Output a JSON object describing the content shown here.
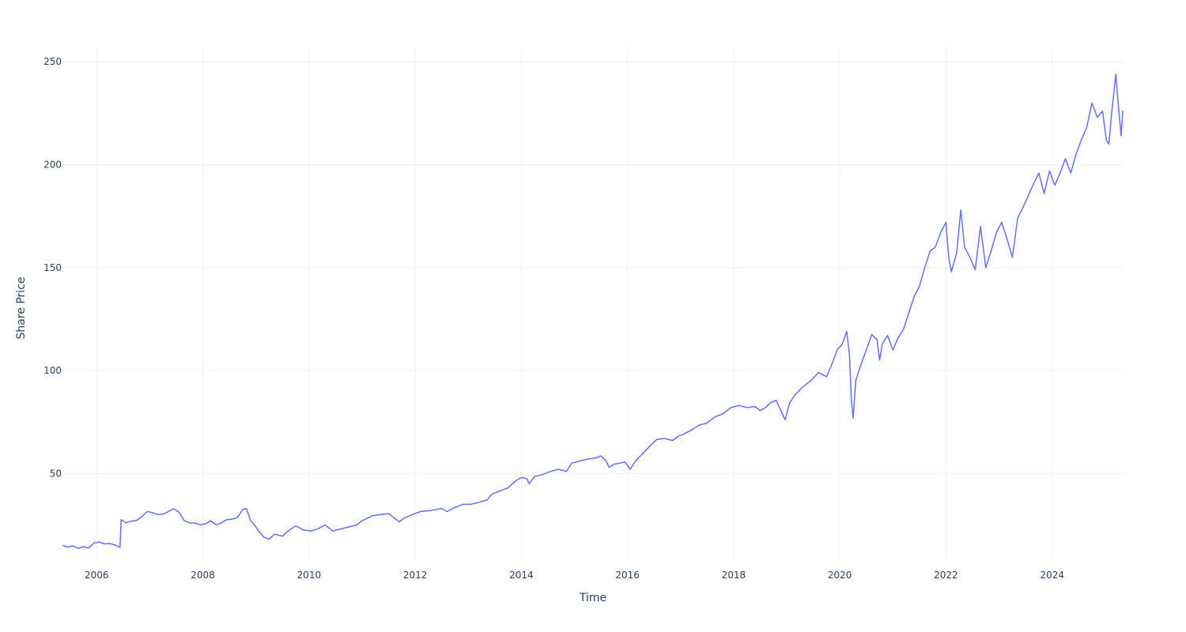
{
  "chart_data": {
    "type": "line",
    "title": "",
    "xlabel": "Time",
    "ylabel": "Share Price",
    "x_tick_labels": [
      "2006",
      "2008",
      "2010",
      "2012",
      "2014",
      "2016",
      "2018",
      "2020",
      "2022",
      "2024"
    ],
    "y_tick_labels": [
      "50",
      "100",
      "150",
      "200",
      "250"
    ],
    "x_ticks": [
      2006,
      2008,
      2010,
      2012,
      2014,
      2016,
      2018,
      2020,
      2022,
      2024
    ],
    "y_ticks": [
      50,
      100,
      150,
      200,
      250
    ],
    "xlim": [
      2005.37,
      2025.33
    ],
    "ylim": [
      7.5,
      257
    ],
    "grid": true,
    "legend": "none",
    "series": [
      {
        "color": "#636efa",
        "points": [
          [
            2005.37,
            15.0
          ],
          [
            2005.45,
            14.2
          ],
          [
            2005.55,
            14.8
          ],
          [
            2005.65,
            13.6
          ],
          [
            2005.75,
            14.4
          ],
          [
            2005.85,
            13.8
          ],
          [
            2005.95,
            16.2
          ],
          [
            2006.05,
            16.6
          ],
          [
            2006.15,
            15.8
          ],
          [
            2006.25,
            15.9
          ],
          [
            2006.35,
            15.2
          ],
          [
            2006.44,
            14.0
          ],
          [
            2006.46,
            27.5
          ],
          [
            2006.55,
            26.0
          ],
          [
            2006.65,
            26.8
          ],
          [
            2006.75,
            27.2
          ],
          [
            2006.85,
            29.0
          ],
          [
            2006.95,
            31.5
          ],
          [
            2007.05,
            31.0
          ],
          [
            2007.15,
            30.0
          ],
          [
            2007.25,
            30.2
          ],
          [
            2007.35,
            31.5
          ],
          [
            2007.45,
            32.8
          ],
          [
            2007.55,
            31.2
          ],
          [
            2007.65,
            27.0
          ],
          [
            2007.75,
            26.0
          ],
          [
            2007.85,
            25.8
          ],
          [
            2007.95,
            25.0
          ],
          [
            2008.05,
            25.5
          ],
          [
            2008.15,
            27.0
          ],
          [
            2008.25,
            25.0
          ],
          [
            2008.35,
            26.0
          ],
          [
            2008.45,
            27.5
          ],
          [
            2008.55,
            27.8
          ],
          [
            2008.65,
            28.5
          ],
          [
            2008.75,
            32.5
          ],
          [
            2008.82,
            33.0
          ],
          [
            2008.9,
            27.0
          ],
          [
            2009.0,
            24.0
          ],
          [
            2009.05,
            22.0
          ],
          [
            2009.15,
            19.0
          ],
          [
            2009.25,
            18.0
          ],
          [
            2009.35,
            20.5
          ],
          [
            2009.5,
            19.5
          ],
          [
            2009.6,
            22.0
          ],
          [
            2009.75,
            24.5
          ],
          [
            2009.9,
            22.5
          ],
          [
            2010.05,
            22.0
          ],
          [
            2010.2,
            23.5
          ],
          [
            2010.3,
            25.0
          ],
          [
            2010.45,
            22.0
          ],
          [
            2010.6,
            23.0
          ],
          [
            2010.75,
            24.0
          ],
          [
            2010.9,
            25.0
          ],
          [
            2011.0,
            27.0
          ],
          [
            2011.2,
            29.5
          ],
          [
            2011.35,
            30.0
          ],
          [
            2011.5,
            30.5
          ],
          [
            2011.6,
            28.5
          ],
          [
            2011.7,
            26.5
          ],
          [
            2011.8,
            28.5
          ],
          [
            2011.95,
            30.0
          ],
          [
            2012.1,
            31.5
          ],
          [
            2012.3,
            32.0
          ],
          [
            2012.5,
            33.0
          ],
          [
            2012.6,
            31.5
          ],
          [
            2012.75,
            33.5
          ],
          [
            2012.9,
            35.0
          ],
          [
            2013.05,
            35.0
          ],
          [
            2013.2,
            36.0
          ],
          [
            2013.35,
            37.0
          ],
          [
            2013.45,
            40.0
          ],
          [
            2013.6,
            41.5
          ],
          [
            2013.75,
            43.0
          ],
          [
            2013.9,
            46.5
          ],
          [
            2014.0,
            48.0
          ],
          [
            2014.1,
            47.5
          ],
          [
            2014.15,
            45.0
          ],
          [
            2014.25,
            48.5
          ],
          [
            2014.4,
            49.5
          ],
          [
            2014.55,
            51.0
          ],
          [
            2014.7,
            52.0
          ],
          [
            2014.85,
            51.0
          ],
          [
            2014.95,
            55.0
          ],
          [
            2015.1,
            56.0
          ],
          [
            2015.25,
            57.0
          ],
          [
            2015.4,
            57.5
          ],
          [
            2015.5,
            58.5
          ],
          [
            2015.6,
            56.0
          ],
          [
            2015.65,
            53.0
          ],
          [
            2015.75,
            54.5
          ],
          [
            2015.85,
            55.0
          ],
          [
            2015.95,
            55.5
          ],
          [
            2016.05,
            52.0
          ],
          [
            2016.15,
            56.0
          ],
          [
            2016.3,
            60.0
          ],
          [
            2016.45,
            64.0
          ],
          [
            2016.55,
            66.5
          ],
          [
            2016.7,
            67.0
          ],
          [
            2016.85,
            66.0
          ],
          [
            2016.95,
            68.0
          ],
          [
            2017.05,
            69.0
          ],
          [
            2017.2,
            71.0
          ],
          [
            2017.35,
            73.5
          ],
          [
            2017.5,
            74.5
          ],
          [
            2017.65,
            77.5
          ],
          [
            2017.8,
            79.0
          ],
          [
            2017.95,
            82.0
          ],
          [
            2018.1,
            83.0
          ],
          [
            2018.25,
            82.0
          ],
          [
            2018.4,
            82.5
          ],
          [
            2018.5,
            80.5
          ],
          [
            2018.6,
            82.0
          ],
          [
            2018.7,
            84.5
          ],
          [
            2018.8,
            85.5
          ],
          [
            2018.9,
            80.0
          ],
          [
            2018.97,
            76.0
          ],
          [
            2019.05,
            84.0
          ],
          [
            2019.15,
            88.0
          ],
          [
            2019.3,
            92.0
          ],
          [
            2019.45,
            95.0
          ],
          [
            2019.6,
            99.0
          ],
          [
            2019.75,
            97.0
          ],
          [
            2019.85,
            103.0
          ],
          [
            2019.95,
            110.0
          ],
          [
            2020.05,
            113.0
          ],
          [
            2020.13,
            119.0
          ],
          [
            2020.18,
            108.0
          ],
          [
            2020.22,
            85.0
          ],
          [
            2020.25,
            77.0
          ],
          [
            2020.3,
            95.0
          ],
          [
            2020.4,
            103.0
          ],
          [
            2020.5,
            110.0
          ],
          [
            2020.6,
            117.5
          ],
          [
            2020.7,
            115.0
          ],
          [
            2020.75,
            105.0
          ],
          [
            2020.8,
            113.0
          ],
          [
            2020.9,
            117.0
          ],
          [
            2021.0,
            110.0
          ],
          [
            2021.1,
            116.0
          ],
          [
            2021.2,
            120.0
          ],
          [
            2021.3,
            128.0
          ],
          [
            2021.4,
            136.0
          ],
          [
            2021.5,
            141.0
          ],
          [
            2021.6,
            150.0
          ],
          [
            2021.7,
            158.0
          ],
          [
            2021.8,
            160.0
          ],
          [
            2021.9,
            167.0
          ],
          [
            2022.0,
            172.0
          ],
          [
            2022.05,
            155.0
          ],
          [
            2022.1,
            148.0
          ],
          [
            2022.2,
            157.0
          ],
          [
            2022.28,
            178.0
          ],
          [
            2022.35,
            160.0
          ],
          [
            2022.45,
            155.0
          ],
          [
            2022.55,
            149.0
          ],
          [
            2022.65,
            170.0
          ],
          [
            2022.75,
            150.0
          ],
          [
            2022.85,
            158.0
          ],
          [
            2022.95,
            167.0
          ],
          [
            2023.05,
            172.0
          ],
          [
            2023.15,
            164.0
          ],
          [
            2023.25,
            155.0
          ],
          [
            2023.35,
            174.0
          ],
          [
            2023.5,
            182.0
          ],
          [
            2023.6,
            188.0
          ],
          [
            2023.75,
            196.0
          ],
          [
            2023.85,
            186.0
          ],
          [
            2023.95,
            197.0
          ],
          [
            2024.05,
            190.0
          ],
          [
            2024.15,
            196.0
          ],
          [
            2024.25,
            203.0
          ],
          [
            2024.35,
            196.0
          ],
          [
            2024.45,
            205.0
          ],
          [
            2024.55,
            212.0
          ],
          [
            2024.65,
            218.0
          ],
          [
            2024.75,
            230.0
          ],
          [
            2024.85,
            223.0
          ],
          [
            2024.95,
            226.0
          ],
          [
            2025.02,
            212.0
          ],
          [
            2025.07,
            210.0
          ],
          [
            2025.12,
            225.0
          ],
          [
            2025.2,
            244.0
          ],
          [
            2025.25,
            228.0
          ],
          [
            2025.3,
            214.0
          ],
          [
            2025.33,
            226.0
          ]
        ]
      }
    ]
  }
}
